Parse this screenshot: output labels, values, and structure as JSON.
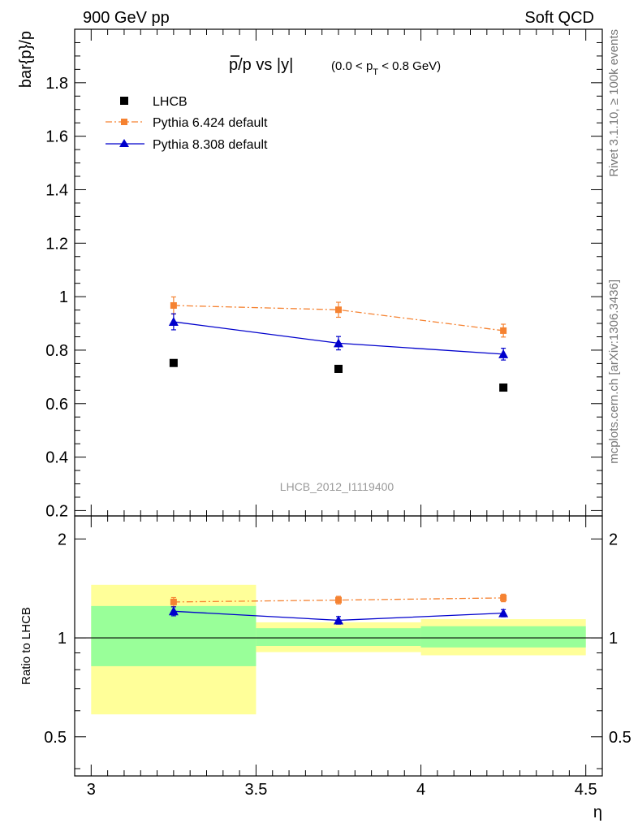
{
  "header": {
    "left": "900 GeV pp",
    "right": "Soft QCD"
  },
  "side_labels": {
    "rivet": "Rivet 3.1.10, ≥ 100k events",
    "mcplots": "mcplots.cern.ch [arXiv:1306.3436]"
  },
  "chart_data": {
    "type": "scatter",
    "title": "p̄/p vs |y|",
    "title_main_p": "p",
    "title_main_rest": "/p vs |y|",
    "title_range_pre": "(0.0 < p",
    "title_range_sub": "T",
    "title_range_post": " < 0.8 GeV)",
    "ylabel": "bar{p}/p",
    "xlabel": "η",
    "ylim": [
      0.18,
      2.0
    ],
    "xlim": [
      2.95,
      4.55
    ],
    "watermark": "LHCB_2012_I1119400",
    "x": [
      3.25,
      3.75,
      4.25
    ],
    "series": [
      {
        "name": "LHCB",
        "marker": "square",
        "color": "#000000",
        "values": [
          0.752,
          0.73,
          0.66
        ],
        "errors": [
          0.004,
          0.004,
          0.004
        ],
        "line": false
      },
      {
        "name": "Pythia 6.424 default",
        "marker": "square",
        "color": "#f58231",
        "values": [
          0.967,
          0.951,
          0.873
        ],
        "errors": [
          0.032,
          0.028,
          0.024
        ],
        "line": "dashdot"
      },
      {
        "name": "Pythia 8.308 default",
        "marker": "triangle",
        "color": "#0000cc",
        "values": [
          0.906,
          0.826,
          0.785
        ],
        "errors": [
          0.03,
          0.025,
          0.022
        ],
        "line": "solid"
      }
    ],
    "yticks_main": [
      "0.2",
      "0.4",
      "0.6",
      "0.8",
      "1",
      "1.2",
      "1.4",
      "1.6",
      "1.8"
    ],
    "ratio": {
      "ylabel": "Ratio to LHCB",
      "scale": "log",
      "ylim": [
        0.38,
        2.35
      ],
      "ticks": [
        "0.5",
        "1",
        "2"
      ],
      "bins": [
        {
          "xlow": 3.0,
          "xhigh": 3.5,
          "green": [
            0.82,
            1.25
          ],
          "yellow": [
            0.585,
            1.45
          ]
        },
        {
          "xlow": 3.5,
          "xhigh": 4.0,
          "green": [
            0.945,
            1.07
          ],
          "yellow": [
            0.905,
            1.115
          ]
        },
        {
          "xlow": 4.0,
          "xhigh": 4.5,
          "green": [
            0.935,
            1.085
          ],
          "yellow": [
            0.885,
            1.14
          ]
        }
      ],
      "series": [
        {
          "name": "Pythia 6.424 default",
          "values": [
            1.286,
            1.303,
            1.323
          ],
          "errors": [
            0.04,
            0.035,
            0.035
          ]
        },
        {
          "name": "Pythia 8.308 default",
          "values": [
            1.205,
            1.131,
            1.189
          ],
          "errors": [
            0.038,
            0.03,
            0.03
          ]
        }
      ]
    },
    "xticks": [
      "3",
      "3.5",
      "4",
      "4.5"
    ]
  }
}
